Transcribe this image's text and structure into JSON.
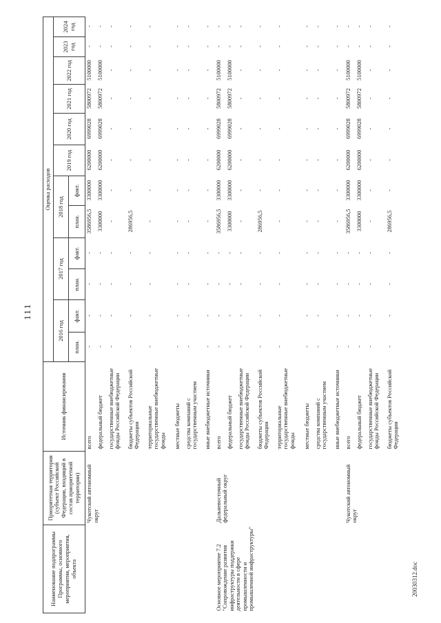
{
  "page": {
    "number": "111",
    "footer": "20030312.doc"
  },
  "table": {
    "headers": {
      "col_name": "Наименование подпрограммы Программы, основного мероприятия, мероприятия, объекта",
      "col_territory": "Приоритетная территория (субъект Российской Федерации, входящий в состав приоритетной территории)",
      "col_source": "Источник финансирования",
      "expenses_title": "Оценка расходов",
      "sub_plan": "план.",
      "sub_fact": "факт.",
      "years_with_sub": [
        "2016 год",
        "2017 год",
        "2018 год"
      ],
      "years_plain": [
        "2019 год",
        "2020 год",
        "2021 год",
        "2022 год",
        "2023 год",
        "2024 год"
      ]
    },
    "blocks": [
      {
        "name": "",
        "territory": "Чукотский автономный округ",
        "rows": [
          {
            "source": "всего",
            "values": [
              "-",
              "-",
              "-",
              "-",
              "3586956,5",
              "3300000",
              "6200000",
              "6999028",
              "5800972",
              "5100000",
              "-",
              "-"
            ]
          },
          {
            "source": "федеральный бюджет",
            "values": [
              "-",
              "-",
              "-",
              "-",
              "3300000",
              "3300000",
              "6200000",
              "6999028",
              "5800972",
              "5100000",
              "-",
              "-"
            ]
          },
          {
            "source": "государственные внебюджетные фонды Российской Федерации",
            "values": [
              "-",
              "-",
              "-",
              "-",
              "-",
              "-",
              "-",
              "-",
              "-",
              "-",
              "-",
              "-"
            ]
          },
          {
            "source": "бюджеты субъектов Российской Федерации",
            "values": [
              "-",
              "-",
              "-",
              "-",
              "286956,5",
              "-",
              "-",
              "-",
              "-",
              "-",
              "-",
              "-"
            ]
          },
          {
            "source": "территориальные государственные внебюджетные фонды",
            "values": [
              "-",
              "-",
              "-",
              "-",
              "-",
              "-",
              "-",
              "-",
              "-",
              "-",
              "-",
              "-"
            ]
          },
          {
            "source": "местные бюджеты",
            "values": [
              "-",
              "-",
              "-",
              "-",
              "-",
              "-",
              "-",
              "-",
              "-",
              "-",
              "-",
              "-"
            ]
          },
          {
            "source": "средства компаний с государственным участием",
            "values": [
              "-",
              "-",
              "-",
              "-",
              "-",
              "-",
              "-",
              "-",
              "-",
              "-",
              "-",
              "-"
            ]
          },
          {
            "source": "иные внебюджетные источники",
            "values": [
              "-",
              "-",
              "-",
              "-",
              "-",
              "-",
              "-",
              "-",
              "-",
              "-",
              "-",
              "-"
            ]
          }
        ]
      },
      {
        "name": "Основное мероприятие 7.2 \"Сопровождение развития инфраструктуры поддержки деятельности в сфере промышленности и промышленной инфраструктуры\"",
        "territory": "Дальневосточный федеральный округ",
        "rows": [
          {
            "source": "всего",
            "values": [
              "-",
              "-",
              "-",
              "-",
              "3586956,5",
              "3300000",
              "6200000",
              "6999028",
              "5800972",
              "5100000",
              "-",
              "-"
            ]
          },
          {
            "source": "федеральный бюджет",
            "values": [
              "-",
              "-",
              "-",
              "-",
              "3300000",
              "3300000",
              "6200000",
              "6999028",
              "5800972",
              "5100000",
              "-",
              "-"
            ]
          },
          {
            "source": "государственные внебюджетные фонды Российской Федерации",
            "values": [
              "-",
              "-",
              "-",
              "-",
              "-",
              "-",
              "-",
              "-",
              "-",
              "-",
              "-",
              "-"
            ]
          },
          {
            "source": "бюджеты субъектов Российской Федерации",
            "values": [
              "-",
              "-",
              "-",
              "-",
              "286956,5",
              "-",
              "-",
              "-",
              "-",
              "-",
              "-",
              "-"
            ]
          },
          {
            "source": "территориальные государственные внебюджетные фонды",
            "values": [
              "-",
              "-",
              "-",
              "-",
              "-",
              "-",
              "-",
              "-",
              "-",
              "-",
              "-",
              "-"
            ]
          },
          {
            "source": "местные бюджеты",
            "values": [
              "-",
              "-",
              "-",
              "-",
              "-",
              "-",
              "-",
              "-",
              "-",
              "-",
              "-",
              "-"
            ]
          },
          {
            "source": "средства компаний с государственным участием",
            "values": [
              "-",
              "-",
              "-",
              "-",
              "-",
              "-",
              "-",
              "-",
              "-",
              "-",
              "-",
              "-"
            ]
          },
          {
            "source": "иные внебюджетные источники",
            "values": [
              "-",
              "-",
              "-",
              "-",
              "-",
              "-",
              "-",
              "-",
              "-",
              "-",
              "-",
              "-"
            ]
          }
        ]
      },
      {
        "name": "",
        "territory": "Чукотский автономный округ",
        "rows": [
          {
            "source": "всего",
            "values": [
              "-",
              "-",
              "-",
              "-",
              "3586956,5",
              "3300000",
              "6200000",
              "6999028",
              "5800972",
              "5100000",
              "-",
              "-"
            ]
          },
          {
            "source": "федеральный бюджет",
            "values": [
              "-",
              "-",
              "-",
              "-",
              "3300000",
              "3300000",
              "6200000",
              "6999028",
              "5800972",
              "5100000",
              "-",
              "-"
            ]
          },
          {
            "source": "государственные внебюджетные фонды Российской Федерации",
            "values": [
              "-",
              "-",
              "-",
              "-",
              "-",
              "-",
              "-",
              "-",
              "-",
              "-",
              "-",
              "-"
            ]
          },
          {
            "source": "бюджеты субъектов Российской Федерации",
            "values": [
              "-",
              "-",
              "-",
              "-",
              "286956,5",
              "-",
              "-",
              "-",
              "-",
              "-",
              "-",
              "-"
            ]
          }
        ]
      }
    ]
  }
}
